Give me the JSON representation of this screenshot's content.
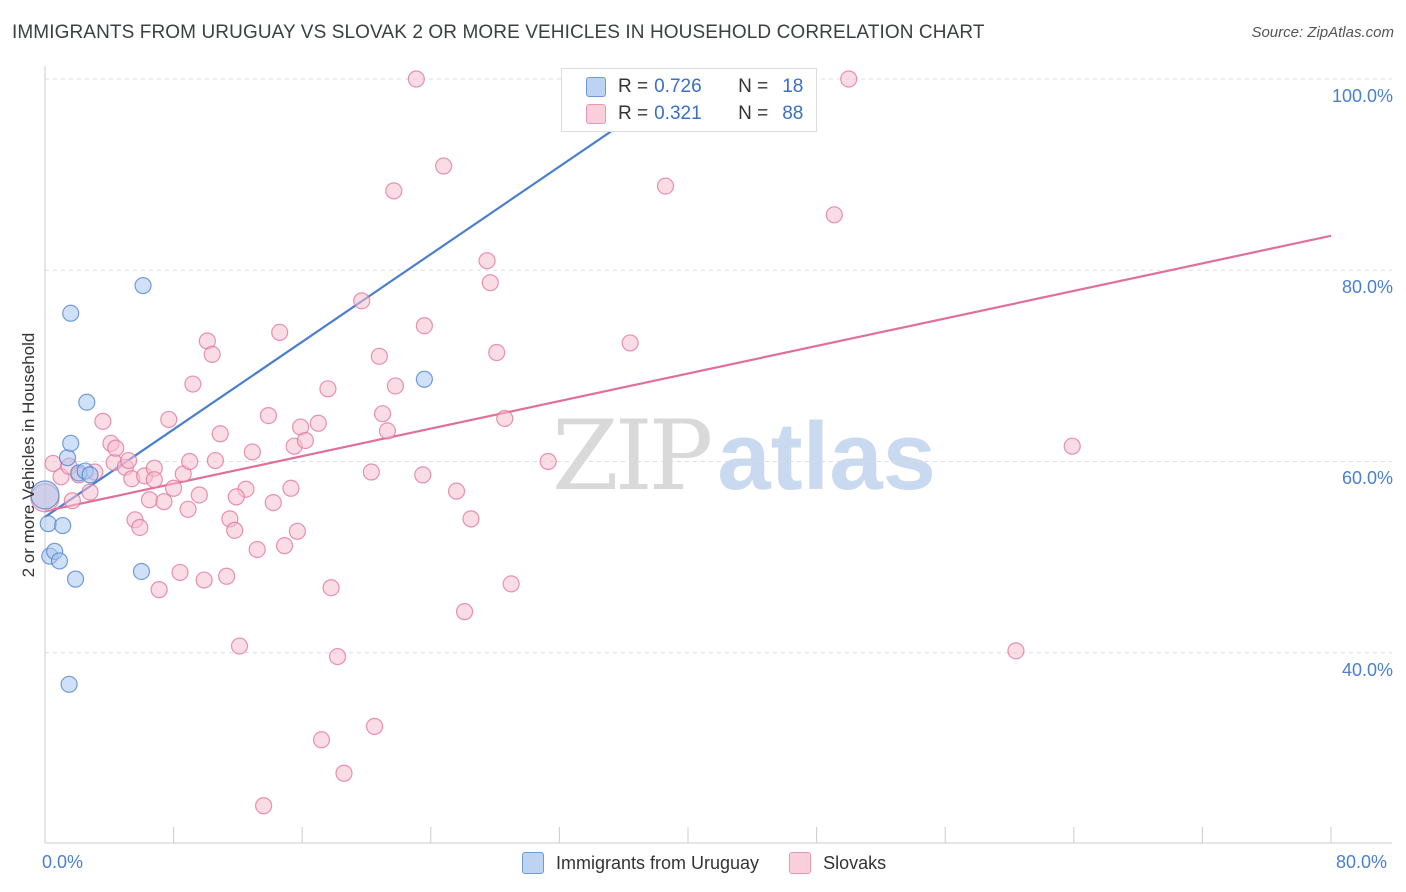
{
  "chart_data": {
    "type": "scatter",
    "title": "IMMIGRANTS FROM URUGUAY VS SLOVAK 2 OR MORE VEHICLES IN HOUSEHOLD CORRELATION CHART",
    "source": "Source: ZipAtlas.com",
    "xlabel": "",
    "ylabel": "2 or more Vehicles in Household",
    "xlim": [
      0,
      80
    ],
    "ylim": [
      20,
      104
    ],
    "x_tick_labels": [
      "0.0%",
      "80.0%"
    ],
    "y_ticks": [
      40,
      60,
      80,
      100
    ],
    "y_tick_labels": [
      "40.0%",
      "60.0%",
      "80.0%",
      "100.0%"
    ],
    "grid": true,
    "watermark": {
      "a": "ZIP",
      "b": "atlas"
    },
    "legend": {
      "position": "top-center",
      "entries": [
        {
          "series": "Immigrants from Uruguay",
          "r_label": "R =",
          "r": "0.726",
          "n_label": "N =",
          "n": "18"
        },
        {
          "series": "Slovaks",
          "r_label": "R =",
          "r": "0.321",
          "n_label": "N =",
          "n": "88"
        }
      ]
    },
    "series": [
      {
        "name": "Immigrants from Uruguay",
        "color": "#4a7fd0",
        "fill": "#a9c7ef",
        "trend": {
          "x": [
            0.0,
            40.0
          ],
          "y": [
            54.2,
            100.0
          ]
        },
        "points": [
          [
            0.2,
            53.5
          ],
          [
            0.3,
            50.1
          ],
          [
            0.6,
            50.6
          ],
          [
            0.9,
            49.6
          ],
          [
            1.1,
            53.3
          ],
          [
            1.4,
            60.4
          ],
          [
            1.5,
            36.7
          ],
          [
            1.6,
            75.5
          ],
          [
            1.6,
            61.9
          ],
          [
            1.9,
            47.7
          ],
          [
            2.1,
            58.8
          ],
          [
            2.5,
            59.0
          ],
          [
            2.6,
            66.2
          ],
          [
            2.8,
            58.6
          ],
          [
            6.0,
            48.5
          ],
          [
            6.1,
            78.4
          ],
          [
            23.6,
            68.6
          ],
          [
            0.0,
            56.5
          ]
        ]
      },
      {
        "name": "Slovaks",
        "color": "#e07098",
        "fill": "#f6c0d0",
        "trend": {
          "x": [
            0.0,
            80.0
          ],
          "y": [
            54.8,
            83.6
          ]
        },
        "points": [
          [
            0.0,
            56.2
          ],
          [
            0.5,
            59.8
          ],
          [
            1.0,
            58.4
          ],
          [
            1.5,
            59.5
          ],
          [
            1.7,
            55.9
          ],
          [
            2.1,
            58.6
          ],
          [
            2.8,
            56.8
          ],
          [
            3.1,
            58.9
          ],
          [
            3.6,
            64.2
          ],
          [
            4.1,
            61.9
          ],
          [
            4.3,
            59.9
          ],
          [
            4.4,
            61.4
          ],
          [
            5.0,
            59.4
          ],
          [
            5.2,
            60.1
          ],
          [
            5.4,
            58.2
          ],
          [
            5.6,
            53.9
          ],
          [
            5.9,
            53.1
          ],
          [
            6.2,
            58.5
          ],
          [
            6.5,
            56.0
          ],
          [
            6.8,
            59.3
          ],
          [
            7.1,
            46.6
          ],
          [
            7.4,
            55.8
          ],
          [
            7.7,
            64.4
          ],
          [
            8.0,
            57.2
          ],
          [
            8.4,
            48.4
          ],
          [
            8.6,
            58.7
          ],
          [
            8.9,
            55.0
          ],
          [
            9.2,
            68.1
          ],
          [
            9.6,
            56.5
          ],
          [
            9.9,
            47.6
          ],
          [
            10.1,
            72.6
          ],
          [
            10.4,
            71.2
          ],
          [
            10.6,
            60.1
          ],
          [
            10.9,
            62.9
          ],
          [
            11.3,
            48.0
          ],
          [
            11.5,
            54.0
          ],
          [
            11.8,
            52.8
          ],
          [
            12.1,
            40.7
          ],
          [
            12.5,
            57.1
          ],
          [
            12.9,
            61.0
          ],
          [
            13.2,
            50.8
          ],
          [
            13.6,
            24.0
          ],
          [
            13.9,
            64.8
          ],
          [
            14.2,
            55.7
          ],
          [
            14.6,
            73.5
          ],
          [
            14.9,
            51.2
          ],
          [
            15.3,
            57.2
          ],
          [
            15.5,
            61.6
          ],
          [
            15.7,
            52.7
          ],
          [
            15.9,
            63.6
          ],
          [
            16.2,
            62.2
          ],
          [
            17.0,
            64.0
          ],
          [
            17.2,
            30.9
          ],
          [
            17.6,
            67.6
          ],
          [
            17.8,
            46.8
          ],
          [
            18.2,
            39.6
          ],
          [
            18.6,
            27.4
          ],
          [
            19.7,
            76.8
          ],
          [
            20.3,
            58.9
          ],
          [
            20.5,
            32.3
          ],
          [
            20.8,
            71.0
          ],
          [
            21.0,
            65.0
          ],
          [
            21.3,
            63.2
          ],
          [
            21.7,
            88.3
          ],
          [
            21.8,
            67.9
          ],
          [
            23.1,
            100.0
          ],
          [
            23.5,
            58.6
          ],
          [
            23.6,
            74.2
          ],
          [
            24.8,
            90.9
          ],
          [
            25.6,
            56.9
          ],
          [
            26.1,
            44.3
          ],
          [
            26.5,
            54.0
          ],
          [
            27.5,
            81.0
          ],
          [
            27.7,
            78.7
          ],
          [
            28.1,
            71.4
          ],
          [
            28.6,
            64.5
          ],
          [
            29.0,
            47.2
          ],
          [
            31.3,
            60.0
          ],
          [
            36.4,
            72.4
          ],
          [
            38.2,
            100.0
          ],
          [
            38.6,
            88.8
          ],
          [
            49.1,
            85.8
          ],
          [
            50.0,
            100.0
          ],
          [
            60.4,
            40.2
          ],
          [
            63.9,
            61.6
          ],
          [
            6.8,
            58.1
          ],
          [
            9.0,
            60.0
          ],
          [
            11.9,
            56.3
          ]
        ]
      }
    ]
  }
}
